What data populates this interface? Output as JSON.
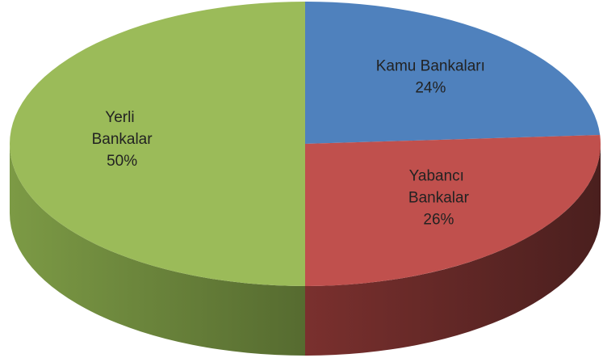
{
  "chart_data": {
    "type": "pie",
    "view": "3d",
    "categories": [
      "Kamu Bankaları",
      "Yabancı Bankalar",
      "Yerli Bankalar"
    ],
    "values": [
      24,
      26,
      50
    ],
    "value_labels": [
      "24%",
      "26%",
      "50%"
    ],
    "colors": [
      "#4f81bd",
      "#c0504d",
      "#9bbb59"
    ],
    "side_colors": [
      [
        "#3a5f8c",
        "#2a4466"
      ],
      [
        "#7a302e",
        "#4a1f1e"
      ],
      [
        "#7c9a45",
        "#566b30"
      ]
    ]
  }
}
